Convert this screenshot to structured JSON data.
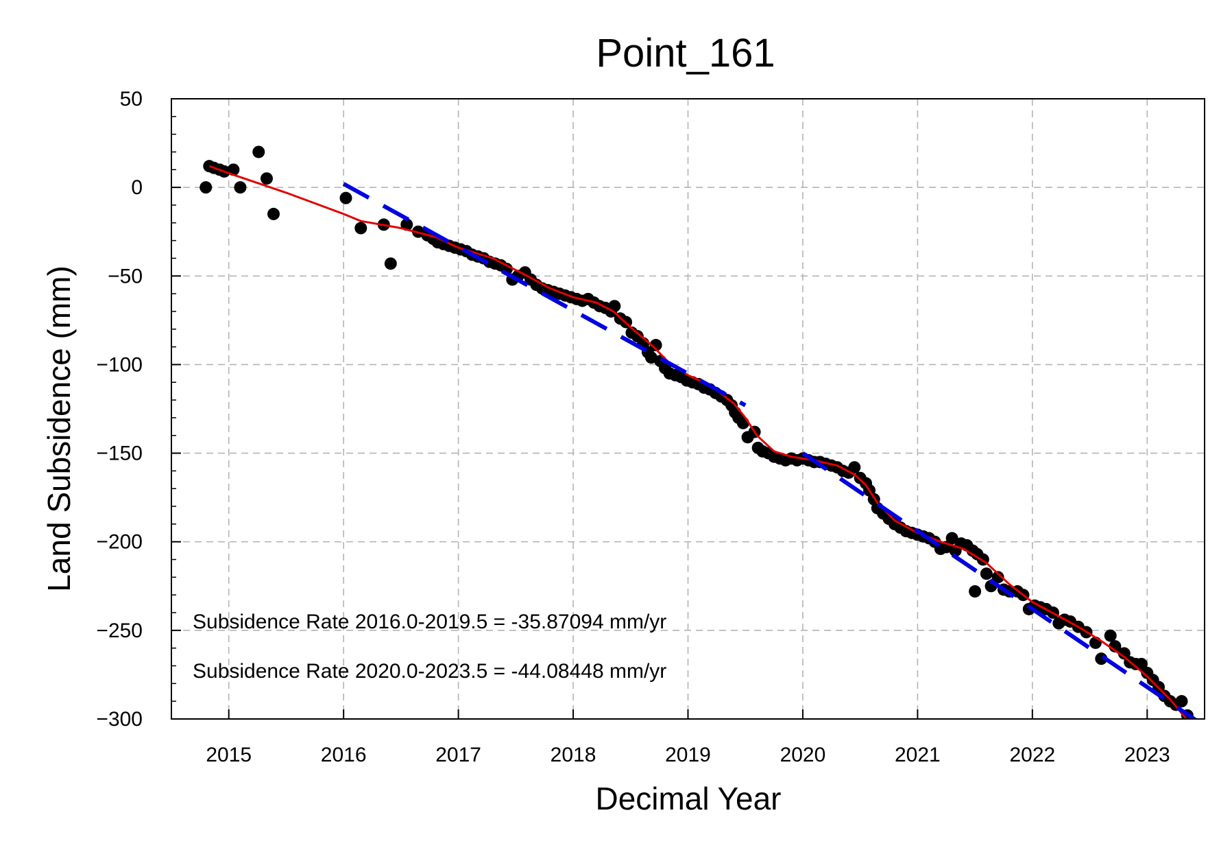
{
  "chart_data": {
    "type": "scatter",
    "title": "Point_161",
    "xlabel": "Decimal Year",
    "ylabel": "Land Subsidence (mm)",
    "xlim": [
      2014.5,
      2023.5
    ],
    "ylim": [
      -300,
      50
    ],
    "xticks": [
      2015,
      2016,
      2017,
      2018,
      2019,
      2020,
      2021,
      2022,
      2023
    ],
    "xtick_labels": [
      "2015",
      "2016",
      "2017",
      "2018",
      "2019",
      "2020",
      "2021",
      "2022",
      "2023"
    ],
    "yticks": [
      50,
      0,
      -50,
      -100,
      -150,
      -200,
      -250,
      -300
    ],
    "ytick_labels": [
      "50",
      "0",
      "−50",
      "−100",
      "−150",
      "−200",
      "−250",
      "−300"
    ],
    "grid": true,
    "annotations": [
      "Subsidence Rate 2016.0-2019.5 = -35.87094 mm/yr",
      "Subsidence Rate 2020.0-2023.5 = -44.08448 mm/yr"
    ],
    "series": [
      {
        "type": "scatter",
        "color": "#000000",
        "points": [
          [
            2014.8,
            0
          ],
          [
            2014.83,
            12
          ],
          [
            2014.87,
            11
          ],
          [
            2014.92,
            10
          ],
          [
            2014.96,
            9
          ],
          [
            2015.04,
            10
          ],
          [
            2015.1,
            0
          ],
          [
            2015.26,
            20
          ],
          [
            2015.33,
            5
          ],
          [
            2015.39,
            -15
          ],
          [
            2016.02,
            -6
          ],
          [
            2016.15,
            -23
          ],
          [
            2016.35,
            -21
          ],
          [
            2016.41,
            -43
          ],
          [
            2016.55,
            -21
          ],
          [
            2016.65,
            -25
          ],
          [
            2016.73,
            -27
          ],
          [
            2016.78,
            -29
          ],
          [
            2016.82,
            -31
          ],
          [
            2016.87,
            -32
          ],
          [
            2016.92,
            -33
          ],
          [
            2016.97,
            -34
          ],
          [
            2017.02,
            -35
          ],
          [
            2017.07,
            -36
          ],
          [
            2017.12,
            -38
          ],
          [
            2017.17,
            -39
          ],
          [
            2017.22,
            -40
          ],
          [
            2017.27,
            -42
          ],
          [
            2017.32,
            -43
          ],
          [
            2017.37,
            -44
          ],
          [
            2017.42,
            -46
          ],
          [
            2017.47,
            -52
          ],
          [
            2017.52,
            -50
          ],
          [
            2017.58,
            -48
          ],
          [
            2017.63,
            -52
          ],
          [
            2017.68,
            -55
          ],
          [
            2017.73,
            -57
          ],
          [
            2017.78,
            -58
          ],
          [
            2017.83,
            -59
          ],
          [
            2017.88,
            -60
          ],
          [
            2017.93,
            -61
          ],
          [
            2017.98,
            -62
          ],
          [
            2018.03,
            -63
          ],
          [
            2018.08,
            -64
          ],
          [
            2018.13,
            -63
          ],
          [
            2018.18,
            -65
          ],
          [
            2018.23,
            -67
          ],
          [
            2018.28,
            -68
          ],
          [
            2018.33,
            -70
          ],
          [
            2018.36,
            -67
          ],
          [
            2018.41,
            -74
          ],
          [
            2018.46,
            -76
          ],
          [
            2018.51,
            -82
          ],
          [
            2018.56,
            -84
          ],
          [
            2018.61,
            -88
          ],
          [
            2018.65,
            -93
          ],
          [
            2018.68,
            -96
          ],
          [
            2018.72,
            -89
          ],
          [
            2018.76,
            -98
          ],
          [
            2018.8,
            -102
          ],
          [
            2018.84,
            -105
          ],
          [
            2018.89,
            -106
          ],
          [
            2018.94,
            -107
          ],
          [
            2018.99,
            -109
          ],
          [
            2019.04,
            -110
          ],
          [
            2019.09,
            -111
          ],
          [
            2019.14,
            -113
          ],
          [
            2019.19,
            -114
          ],
          [
            2019.24,
            -116
          ],
          [
            2019.29,
            -118
          ],
          [
            2019.34,
            -120
          ],
          [
            2019.38,
            -123
          ],
          [
            2019.41,
            -127
          ],
          [
            2019.44,
            -130
          ],
          [
            2019.48,
            -133
          ],
          [
            2019.52,
            -141
          ],
          [
            2019.58,
            -138
          ],
          [
            2019.61,
            -147
          ],
          [
            2019.65,
            -149
          ],
          [
            2019.7,
            -150
          ],
          [
            2019.75,
            -152
          ],
          [
            2019.8,
            -153
          ],
          [
            2019.85,
            -154
          ],
          [
            2019.9,
            -153
          ],
          [
            2019.95,
            -154
          ],
          [
            2020.0,
            -153
          ],
          [
            2020.05,
            -154
          ],
          [
            2020.1,
            -155
          ],
          [
            2020.15,
            -155
          ],
          [
            2020.2,
            -156
          ],
          [
            2020.25,
            -157
          ],
          [
            2020.3,
            -158
          ],
          [
            2020.35,
            -160
          ],
          [
            2020.4,
            -161
          ],
          [
            2020.45,
            -158
          ],
          [
            2020.5,
            -164
          ],
          [
            2020.55,
            -167
          ],
          [
            2020.58,
            -171
          ],
          [
            2020.62,
            -176
          ],
          [
            2020.65,
            -181
          ],
          [
            2020.7,
            -184
          ],
          [
            2020.75,
            -187
          ],
          [
            2020.8,
            -190
          ],
          [
            2020.85,
            -192
          ],
          [
            2020.9,
            -194
          ],
          [
            2020.95,
            -195
          ],
          [
            2021.0,
            -196
          ],
          [
            2021.05,
            -197
          ],
          [
            2021.1,
            -198
          ],
          [
            2021.15,
            -200
          ],
          [
            2021.2,
            -204
          ],
          [
            2021.25,
            -203
          ],
          [
            2021.3,
            -198
          ],
          [
            2021.33,
            -205
          ],
          [
            2021.38,
            -201
          ],
          [
            2021.43,
            -202
          ],
          [
            2021.48,
            -205
          ],
          [
            2021.5,
            -228
          ],
          [
            2021.52,
            -207
          ],
          [
            2021.57,
            -210
          ],
          [
            2021.6,
            -218
          ],
          [
            2021.64,
            -225
          ],
          [
            2021.7,
            -220
          ],
          [
            2021.75,
            -227
          ],
          [
            2021.8,
            -228
          ],
          [
            2021.87,
            -228
          ],
          [
            2021.92,
            -230
          ],
          [
            2021.97,
            -238
          ],
          [
            2022.02,
            -236
          ],
          [
            2022.07,
            -237
          ],
          [
            2022.12,
            -238
          ],
          [
            2022.18,
            -240
          ],
          [
            2022.23,
            -246
          ],
          [
            2022.28,
            -244
          ],
          [
            2022.33,
            -245
          ],
          [
            2022.4,
            -248
          ],
          [
            2022.47,
            -251
          ],
          [
            2022.55,
            -257
          ],
          [
            2022.6,
            -266
          ],
          [
            2022.68,
            -253
          ],
          [
            2022.72,
            -259
          ],
          [
            2022.8,
            -263
          ],
          [
            2022.85,
            -268
          ],
          [
            2022.9,
            -269
          ],
          [
            2022.95,
            -269
          ],
          [
            2023.0,
            -274
          ],
          [
            2023.05,
            -278
          ],
          [
            2023.1,
            -282
          ],
          [
            2023.15,
            -287
          ],
          [
            2023.2,
            -290
          ],
          [
            2023.25,
            -292
          ],
          [
            2023.3,
            -290
          ],
          [
            2023.35,
            -298
          ]
        ]
      },
      {
        "type": "line",
        "color": "#e00000",
        "points": [
          [
            2014.83,
            12
          ],
          [
            2015.0,
            8
          ],
          [
            2015.5,
            -3
          ],
          [
            2016.0,
            -15
          ],
          [
            2016.15,
            -19
          ],
          [
            2016.5,
            -23
          ],
          [
            2016.8,
            -28
          ],
          [
            2017.0,
            -34
          ],
          [
            2017.3,
            -40
          ],
          [
            2017.6,
            -50
          ],
          [
            2017.8,
            -57
          ],
          [
            2018.0,
            -62
          ],
          [
            2018.2,
            -65
          ],
          [
            2018.35,
            -70
          ],
          [
            2018.5,
            -79
          ],
          [
            2018.7,
            -90
          ],
          [
            2018.85,
            -100
          ],
          [
            2019.0,
            -106
          ],
          [
            2019.2,
            -112
          ],
          [
            2019.4,
            -122
          ],
          [
            2019.5,
            -130
          ],
          [
            2019.6,
            -140
          ],
          [
            2019.75,
            -149
          ],
          [
            2019.9,
            -152
          ],
          [
            2020.1,
            -154
          ],
          [
            2020.3,
            -157
          ],
          [
            2020.45,
            -162
          ],
          [
            2020.55,
            -168
          ],
          [
            2020.65,
            -178
          ],
          [
            2020.8,
            -188
          ],
          [
            2021.0,
            -195
          ],
          [
            2021.2,
            -200
          ],
          [
            2021.4,
            -204
          ],
          [
            2021.6,
            -212
          ],
          [
            2021.8,
            -224
          ],
          [
            2022.0,
            -234
          ],
          [
            2022.2,
            -241
          ],
          [
            2022.4,
            -248
          ],
          [
            2022.6,
            -256
          ],
          [
            2022.8,
            -265
          ],
          [
            2023.0,
            -276
          ],
          [
            2023.2,
            -289
          ],
          [
            2023.38,
            -303
          ]
        ]
      },
      {
        "type": "line",
        "color": "#0000e0",
        "dashed": true,
        "points": [
          [
            2016.0,
            2
          ],
          [
            2019.5,
            -123
          ]
        ]
      },
      {
        "type": "line",
        "color": "#0000e0",
        "dashed": true,
        "points": [
          [
            2020.0,
            -150
          ],
          [
            2023.5,
            -304
          ]
        ]
      }
    ]
  }
}
